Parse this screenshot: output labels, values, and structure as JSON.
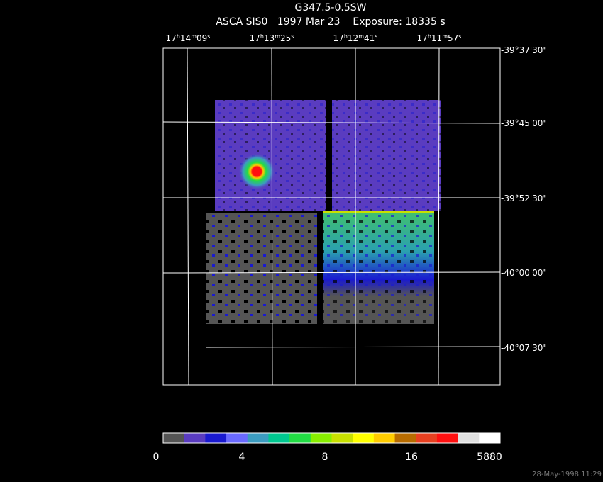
{
  "header": {
    "title": "G347.5-0.5SW",
    "subtitle": "ASCA SIS0   1997 Mar 23    Exposure: 18335 s"
  },
  "ra_labels": [
    [
      "17",
      "h",
      "14",
      "m",
      "09",
      "s"
    ],
    [
      "17",
      "h",
      "13",
      "m",
      "25",
      "s"
    ],
    [
      "17",
      "h",
      "12",
      "m",
      "41",
      "s"
    ],
    [
      "17",
      "h",
      "11",
      "m",
      "57",
      "s"
    ]
  ],
  "dec_labels": [
    "-39°37'30\"",
    "-39°45'00\"",
    "-39°52'30\"",
    "-40°00'00\"",
    "-40°07'30\""
  ],
  "colorbar": {
    "colors": [
      "#555555",
      "#5a3cc0",
      "#1a1ad0",
      "#6a6aff",
      "#3c9cc0",
      "#00c890",
      "#22dd44",
      "#88ee00",
      "#c8e000",
      "#ffff00",
      "#ffcc00",
      "#b86c00",
      "#e84020",
      "#ff1010",
      "#e0e0e0",
      "#ffffff"
    ],
    "tick_labels": [
      "0",
      "4",
      "8",
      "16",
      "5880"
    ]
  },
  "timestamp": "28-May-1998 11:29"
}
